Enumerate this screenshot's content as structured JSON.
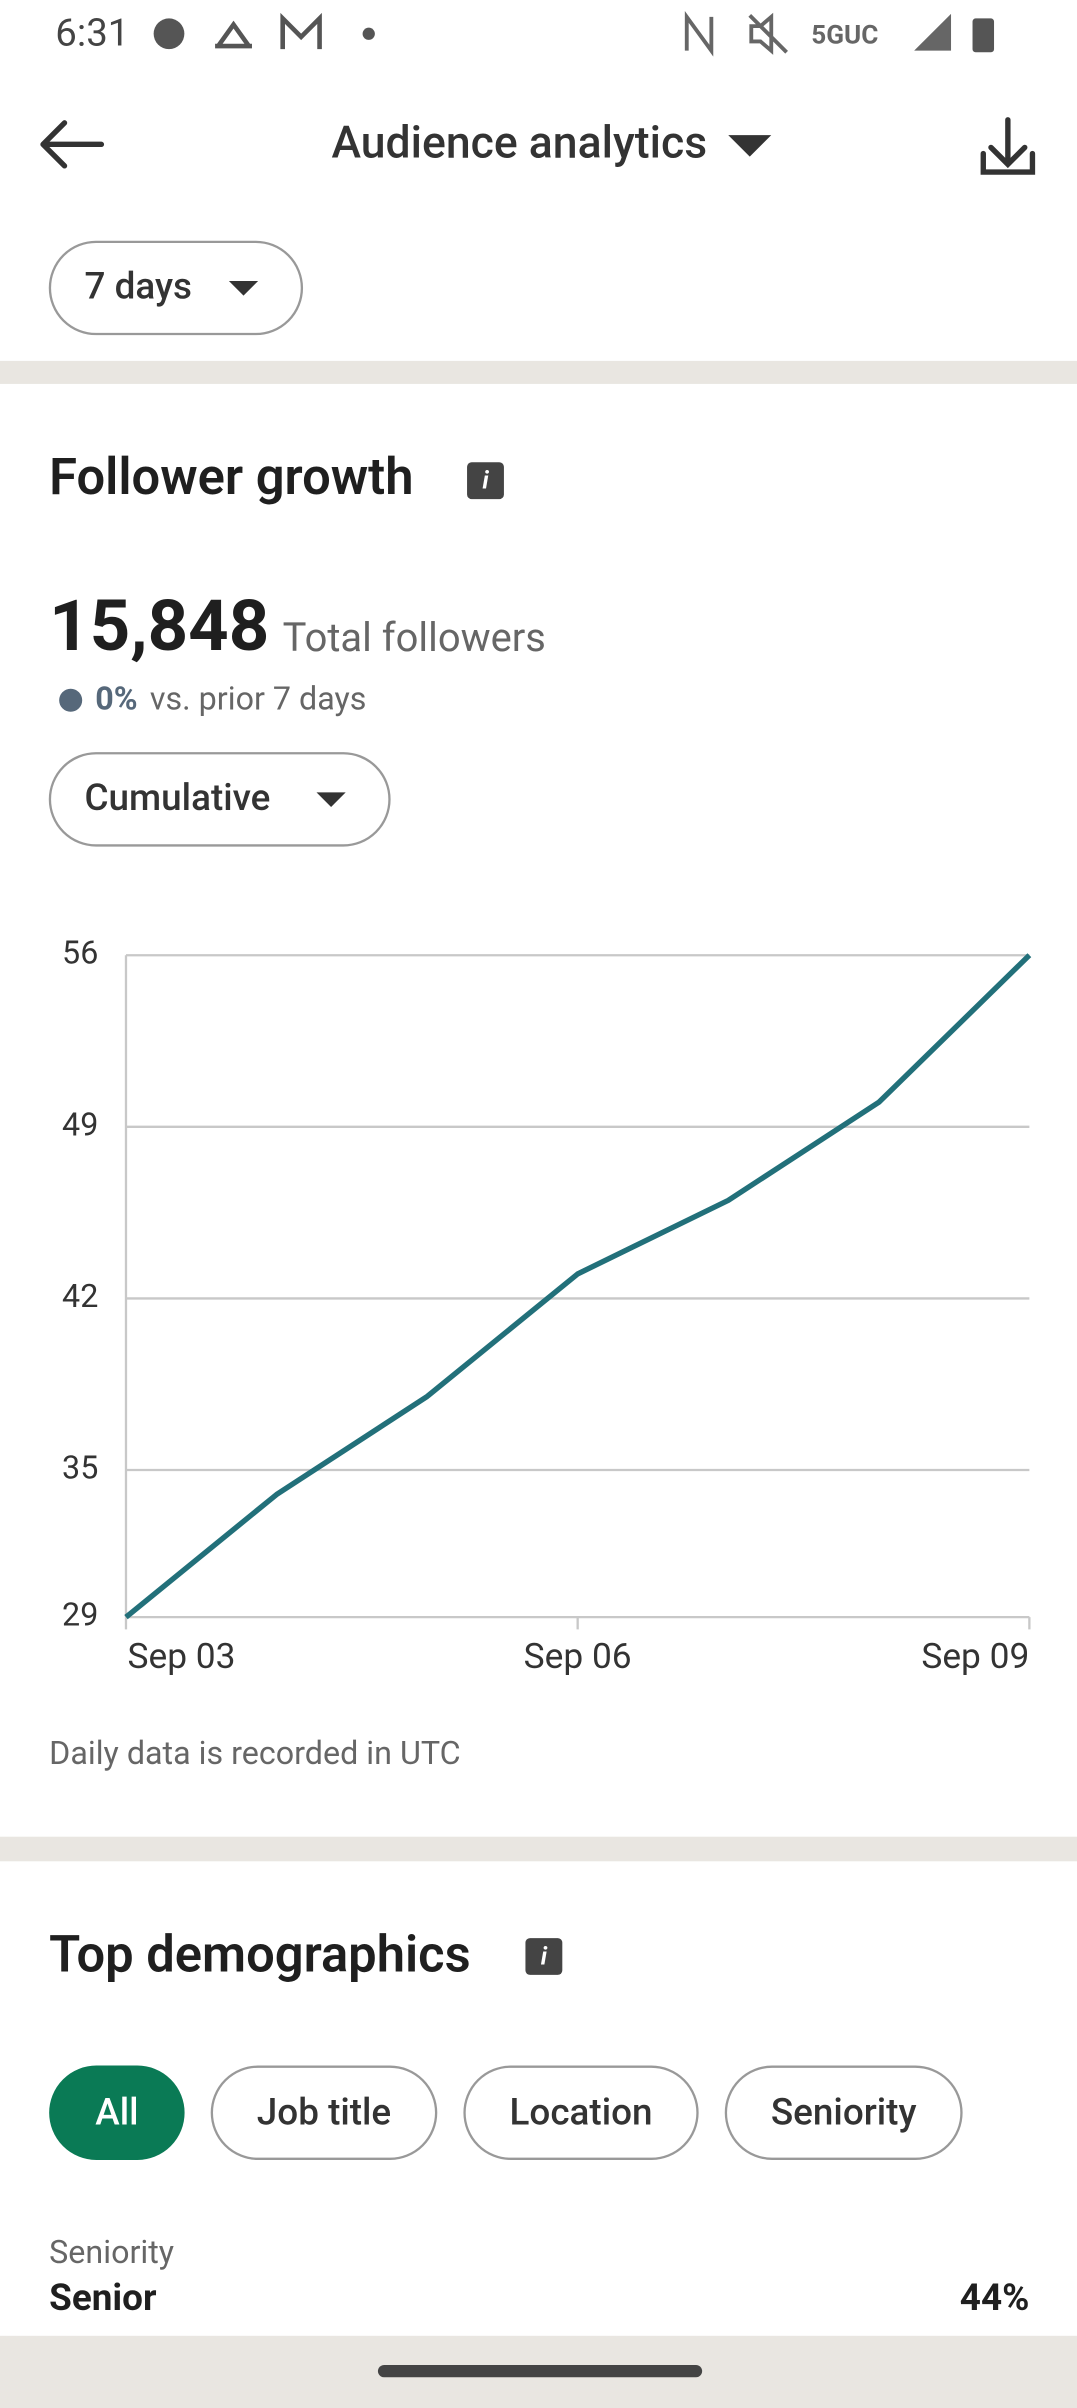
{
  "status_bar": {
    "time": "6:31",
    "network": "5GUC"
  },
  "header": {
    "title": "Audience analytics"
  },
  "filter": {
    "period": "7 days"
  },
  "follower_growth": {
    "title": "Follower growth",
    "total": "15,848",
    "total_label": "Total followers",
    "change": "0%",
    "change_label": "vs. prior 7 days",
    "mode": "Cumulative",
    "footnote": "Daily data is recorded in UTC"
  },
  "chart_data": {
    "type": "line",
    "categories": [
      "Sep 03",
      null,
      null,
      "Sep 06",
      null,
      null,
      "Sep 09"
    ],
    "values": [
      29,
      34,
      38,
      43,
      46,
      50,
      56
    ],
    "color": "#22707a",
    "ylim": [
      29,
      56
    ],
    "yticks": [
      29,
      35,
      42,
      49,
      56
    ],
    "grid": true
  },
  "demographics": {
    "title": "Top demographics",
    "tabs": [
      "All",
      "Job title",
      "Location",
      "Seniority"
    ],
    "item_category": "Seniority",
    "item_name": "Senior",
    "item_value": "44%"
  }
}
